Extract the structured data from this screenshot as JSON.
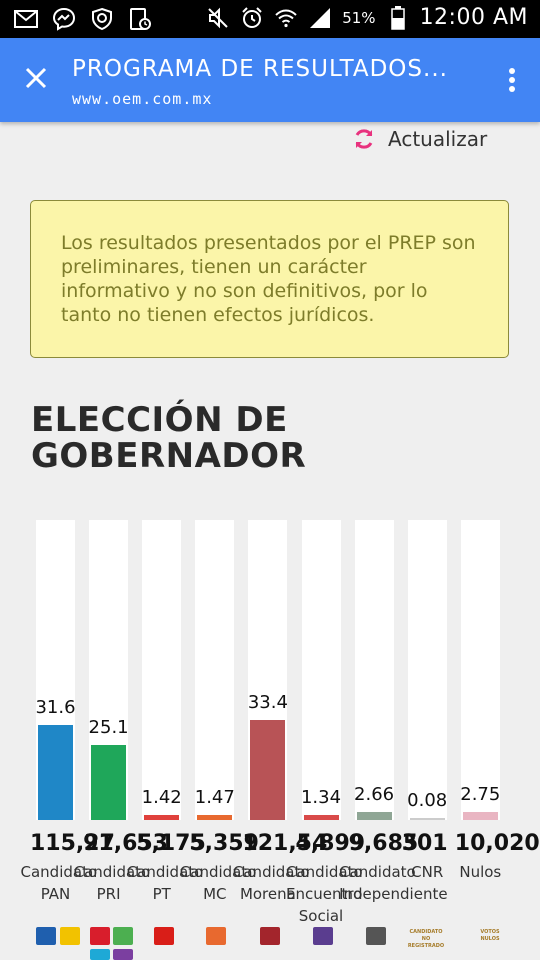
{
  "status_bar": {
    "icons": [
      "mail-icon",
      "messenger-icon",
      "vpn-shield-icon",
      "screen-timer-icon",
      "mute-icon",
      "alarm-icon",
      "wifi-icon",
      "signal-icon",
      "battery-icon"
    ],
    "battery": "51%",
    "time": "12:00 AM"
  },
  "app_bar": {
    "title": "PROGRAMA DE RESULTADOS...",
    "url": "www.oem.com.mx"
  },
  "refresh_label": "Actualizar",
  "notice": "Los resultados presentados por el PREP son preliminares, tienen un carácter informativo y no son definitivos, por lo tanto no tienen efectos jurídicos.",
  "section_title": "ELECCIÓN DE GOBERNADOR",
  "chart_data": {
    "type": "bar",
    "ylim": [
      0,
      100
    ],
    "categories": [
      "Candidato PAN",
      "Candidato PRI",
      "Candidato PT",
      "Candidato MC",
      "Candidato Morena",
      "Candidato Encuentro Social",
      "Candidato Independiente",
      "CNR",
      "Nulos"
    ],
    "bars": [
      {
        "label": "Candidato PAN",
        "pct": 31.6,
        "pct_label": "31.6",
        "votes": "115,27",
        "color": "#1f87c7"
      },
      {
        "label": "Candidato PRI",
        "pct": 25.1,
        "pct_label": "25.1",
        "votes": "91,653",
        "color": "#1fa75a"
      },
      {
        "label": "Candidato PT",
        "pct": 1.42,
        "pct_label": "1.42",
        "votes": "5,175",
        "color": "#e0413c"
      },
      {
        "label": "Candidato MC",
        "pct": 1.47,
        "pct_label": "1.47",
        "votes": "5,359",
        "color": "#e8692f"
      },
      {
        "label": "Candidato Morena",
        "pct": 33.4,
        "pct_label": "33.4",
        "votes": "121,54",
        "color": "#b85356"
      },
      {
        "label": "Candidato Encuentro Social",
        "pct": 1.34,
        "pct_label": "1.34",
        "votes": "4,899",
        "color": "#d94a49"
      },
      {
        "label": "Candidato Independiente",
        "pct": 2.66,
        "pct_label": "2.66",
        "votes": "9,685",
        "color": "#8fa695"
      },
      {
        "label": "CNR",
        "pct": 0.08,
        "pct_label": "0.08",
        "votes": "301",
        "color": "#cccccc"
      },
      {
        "label": "Nulos",
        "pct": 2.75,
        "pct_label": "2.75",
        "votes": "10,020",
        "color": "#e9b5c2"
      }
    ]
  },
  "party_logos": [
    {
      "name": "pan-logo",
      "color": "#1f5fae"
    },
    {
      "name": "prd-logo",
      "color": "#f2c200"
    },
    {
      "name": "pri-logo",
      "color": "#d81e2c"
    },
    {
      "name": "pvem-logo",
      "color": "#4caf50"
    },
    {
      "name": "pt-logo",
      "color": "#d91e18"
    },
    {
      "name": "mc-logo",
      "color": "#e8692f"
    },
    {
      "name": "morena-logo",
      "color": "#a3252c"
    },
    {
      "name": "encuentro-social-logo",
      "color": "#5a3d8f"
    },
    {
      "name": "independiente-logo",
      "color": "#555555"
    },
    {
      "name": "candidato-no-registrado-logo",
      "color": "#a67c2a"
    },
    {
      "name": "votos-nulos-logo",
      "color": "#a67c2a"
    }
  ],
  "logo_texts": {
    "cnr": "CANDIDATO NO REGISTRADO",
    "nulos": "VOTOS NULOS"
  }
}
